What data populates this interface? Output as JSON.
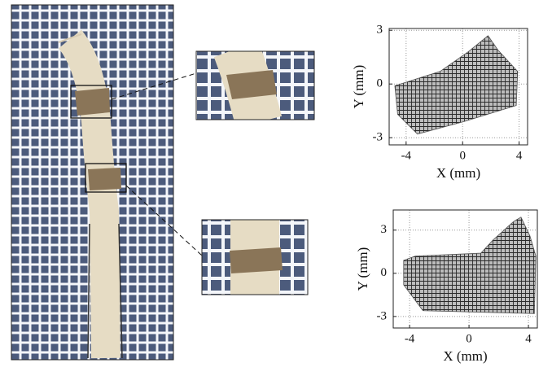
{
  "chart_data": [
    {
      "type": "area",
      "xlabel": "X (mm)",
      "ylabel": "Y (mm)",
      "x": [
        -4.8,
        -1.6,
        0.4,
        1.8,
        2.5,
        3.9,
        3.8,
        0.1,
        -3.2,
        -4.6
      ],
      "y": [
        -0.1,
        0.7,
        1.8,
        2.7,
        1.9,
        0.7,
        -1.2,
        -2.1,
        -2.8,
        -1.7
      ],
      "color": "#555555",
      "xlim": [
        -5.2,
        4.6
      ],
      "ylim": [
        -3.4,
        3.1
      ],
      "xticks": [
        -4,
        0,
        4
      ],
      "yticks": [
        -3,
        0,
        3
      ],
      "grid": true
    },
    {
      "type": "area",
      "xlabel": "X (mm)",
      "ylabel": "Y (mm)",
      "x": [
        -4.4,
        -3.6,
        0.8,
        1.6,
        3.0,
        3.5,
        4.1,
        4.5,
        4.4,
        -3.1,
        -4.4
      ],
      "y": [
        0.9,
        1.2,
        1.4,
        2.3,
        3.6,
        3.9,
        2.6,
        1.2,
        -2.8,
        -2.6,
        -0.8
      ],
      "color": "#555555",
      "xlim": [
        -5.1,
        4.6
      ],
      "ylim": [
        -3.8,
        4.4
      ],
      "xticks": [
        -4,
        0,
        4
      ],
      "yticks": [
        -3,
        0,
        3
      ],
      "grid": true
    }
  ]
}
